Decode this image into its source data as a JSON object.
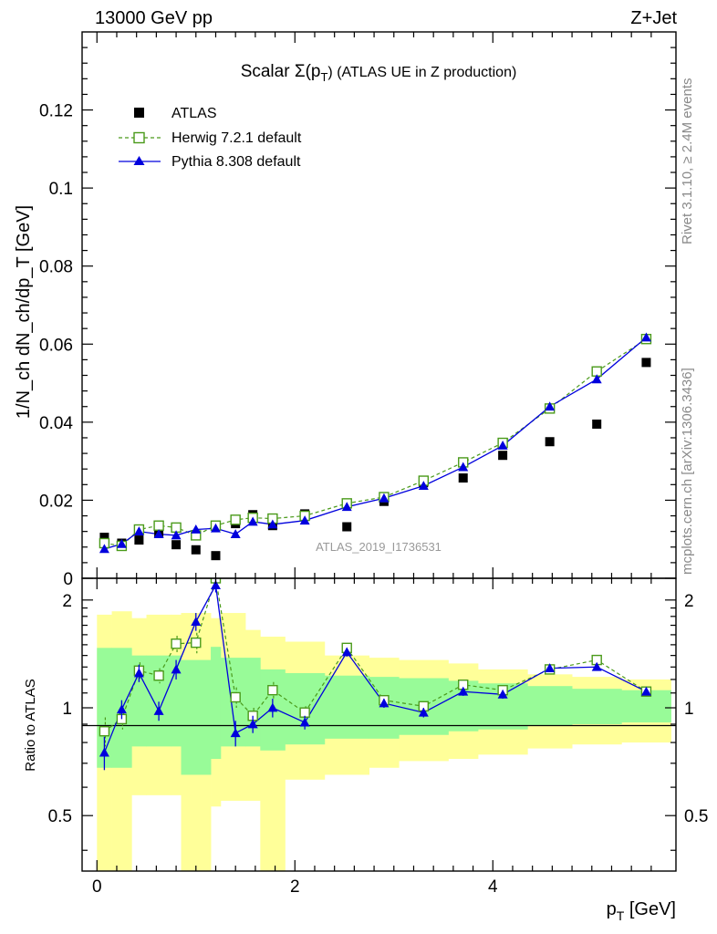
{
  "header": {
    "left": "13000 GeV pp",
    "right": "Z+Jet"
  },
  "side_labels": {
    "rivet": "Rivet 3.1.10, ≥ 2.4M events",
    "mcplots": "mcplots.cern.ch [arXiv:1306.3436]"
  },
  "chart_data": {
    "type": "scatter",
    "title": "Scalar Σ(p_T) (ATLAS UE in Z production)",
    "title_parts": {
      "main": "Scalar Σ(p",
      "sub": "T",
      "tail": ") (ATLAS UE in Z production)"
    },
    "ylabel": "1/N_ch dN_ch/dp_T [GeV]",
    "xlabel": "p_T [GeV]",
    "xlabel_parts": {
      "main": "p",
      "sub": "T",
      "tail": " [GeV]"
    },
    "watermark": "ATLAS_2019_I1736531",
    "xlim": [
      -0.15,
      5.85
    ],
    "ylim": [
      0,
      0.14
    ],
    "x_ticks": [
      "0",
      "2",
      "4"
    ],
    "x_tick_values": [
      0,
      2,
      4
    ],
    "y_ticks": [
      "0",
      "0.02",
      "0.04",
      "0.06",
      "0.08",
      "0.1",
      "0.12"
    ],
    "y_tick_values": [
      0,
      0.02,
      0.04,
      0.06,
      0.08,
      0.1,
      0.12
    ],
    "x": [
      0.075,
      0.25,
      0.425,
      0.625,
      0.8,
      1.0,
      1.2,
      1.4,
      1.575,
      1.775,
      2.1,
      2.525,
      2.9,
      3.3,
      3.7,
      4.1,
      4.575,
      5.05,
      5.55
    ],
    "legend_placement": "top-left",
    "series": [
      {
        "name": "ATLAS",
        "style": "data",
        "color": "#000000",
        "values": [
          0.0105,
          0.009,
          0.0098,
          0.0115,
          0.0086,
          0.0073,
          0.0058,
          0.014,
          0.0163,
          0.0135,
          0.0165,
          0.0132,
          0.0197,
          0.0245,
          0.0257,
          0.0315,
          0.035,
          0.0395,
          0.0553
        ]
      },
      {
        "name": "Herwig 7.2.1 default",
        "style": "herwig",
        "color": "#4a9a1a",
        "values": [
          0.009,
          0.0083,
          0.0125,
          0.0135,
          0.013,
          0.011,
          0.0135,
          0.015,
          0.0155,
          0.0153,
          0.016,
          0.0192,
          0.0208,
          0.025,
          0.0297,
          0.0347,
          0.0435,
          0.053,
          0.0613
        ]
      },
      {
        "name": "Pythia 8.308 default",
        "style": "pythia",
        "color": "#0000dd",
        "values": [
          0.0075,
          0.0088,
          0.012,
          0.0113,
          0.011,
          0.0125,
          0.0128,
          0.0113,
          0.0145,
          0.0138,
          0.0148,
          0.0183,
          0.0205,
          0.0237,
          0.0285,
          0.034,
          0.044,
          0.051,
          0.0617
        ]
      }
    ],
    "ratio": {
      "ylabel": "Ratio to ATLAS",
      "ylim": [
        0.35,
        2.3
      ],
      "y_ticks": [
        "0.5",
        "1",
        "2"
      ],
      "y_tick_values": [
        0.5,
        1,
        2
      ],
      "bin_edges": [
        0,
        0.15,
        0.35,
        0.5,
        0.75,
        0.85,
        1.15,
        1.25,
        1.5,
        1.65,
        1.9,
        2.3,
        2.75,
        3.05,
        3.55,
        3.85,
        4.35,
        4.8,
        5.3,
        5.8
      ],
      "band_inner": [
        [
          0.68,
          1.47
        ],
        [
          0.68,
          1.47
        ],
        [
          0.78,
          1.4
        ],
        [
          0.78,
          1.4
        ],
        [
          0.78,
          1.4
        ],
        [
          0.65,
          1.36
        ],
        [
          0.72,
          1.48
        ],
        [
          0.78,
          1.38
        ],
        [
          0.78,
          1.38
        ],
        [
          0.76,
          1.28
        ],
        [
          0.79,
          1.25
        ],
        [
          0.82,
          1.23
        ],
        [
          0.82,
          1.22
        ],
        [
          0.84,
          1.21
        ],
        [
          0.86,
          1.19
        ],
        [
          0.87,
          1.17
        ],
        [
          0.89,
          1.15
        ],
        [
          0.9,
          1.13
        ],
        [
          0.91,
          1.12
        ]
      ],
      "band_outer": [
        [
          0.35,
          1.82
        ],
        [
          0.35,
          1.86
        ],
        [
          0.57,
          1.78
        ],
        [
          0.57,
          1.82
        ],
        [
          0.57,
          1.82
        ],
        [
          0.35,
          1.84
        ],
        [
          0.53,
          1.78
        ],
        [
          0.55,
          1.84
        ],
        [
          0.55,
          1.65
        ],
        [
          0.35,
          1.58
        ],
        [
          0.63,
          1.53
        ],
        [
          0.65,
          1.4
        ],
        [
          0.68,
          1.38
        ],
        [
          0.71,
          1.36
        ],
        [
          0.72,
          1.33
        ],
        [
          0.74,
          1.28
        ],
        [
          0.77,
          1.24
        ],
        [
          0.79,
          1.22
        ],
        [
          0.8,
          1.2
        ]
      ],
      "herwig": [
        0.86,
        0.93,
        1.27,
        1.23,
        1.51,
        1.52,
        2.3,
        1.07,
        0.95,
        1.12,
        0.97,
        1.47,
        1.05,
        1.01,
        1.16,
        1.12,
        1.28,
        1.36,
        1.11
      ],
      "herwig_err": [
        0.08,
        0.06,
        0.07,
        0.06,
        0.08,
        0.1,
        0.1,
        0.07,
        0.05,
        0.06,
        0.04,
        0.04,
        0.03,
        0.03,
        0.03,
        0.03,
        0.03,
        0.03,
        0.02
      ],
      "pythia": [
        0.75,
        0.99,
        1.25,
        0.98,
        1.28,
        1.74,
        2.2,
        0.85,
        0.9,
        1.0,
        0.91,
        1.43,
        1.03,
        0.97,
        1.11,
        1.09,
        1.29,
        1.3,
        1.11
      ],
      "pythia_err": [
        0.08,
        0.06,
        0.07,
        0.06,
        0.08,
        0.1,
        0.1,
        0.07,
        0.05,
        0.06,
        0.04,
        0.04,
        0.03,
        0.03,
        0.03,
        0.03,
        0.03,
        0.03,
        0.02
      ]
    },
    "colors": {
      "band_inner": "#98fb98",
      "band_outer": "#ffff99"
    }
  }
}
